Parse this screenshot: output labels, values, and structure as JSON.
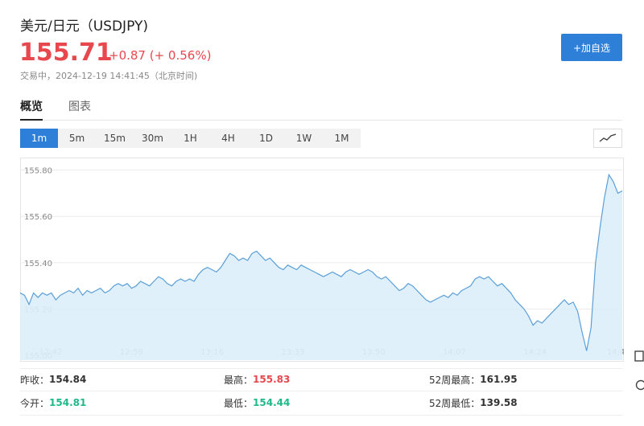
{
  "header": {
    "title": "美元/日元（USDJPY)",
    "price": "155.71",
    "change": "+0.87 (+ 0.56%)",
    "status": "交易中，2024-12-19 14:41:45（北京时间)",
    "watch_button": "+加自选"
  },
  "tabs": [
    {
      "label": "概览",
      "active": true
    },
    {
      "label": "图表",
      "active": false
    }
  ],
  "ranges": [
    {
      "label": "1m",
      "active": true
    },
    {
      "label": "5m",
      "active": false
    },
    {
      "label": "15m",
      "active": false
    },
    {
      "label": "30m",
      "active": false
    },
    {
      "label": "1H",
      "active": false
    },
    {
      "label": "4H",
      "active": false
    },
    {
      "label": "1D",
      "active": false
    },
    {
      "label": "1W",
      "active": false
    },
    {
      "label": "1M",
      "active": false
    }
  ],
  "chart_type_icon": "line-chart-icon",
  "colors": {
    "up": "#e8474d",
    "down": "#1eb88a",
    "accent": "#2e7fd8",
    "line": "#5a9fd8",
    "fill": "#ddeefb"
  },
  "chart_data": {
    "type": "area",
    "y_ticks": [
      "155.80",
      "155.60",
      "155.40",
      "155.20",
      "155.00"
    ],
    "x_ticks": [
      "12:42",
      "12:59",
      "13:16",
      "13:33",
      "13:50",
      "14:07",
      "14:24",
      "14:4"
    ],
    "ylim": [
      154.98,
      155.84
    ],
    "grid": true,
    "values": [
      155.27,
      155.26,
      155.22,
      155.27,
      155.25,
      155.27,
      155.26,
      155.27,
      155.24,
      155.26,
      155.27,
      155.28,
      155.27,
      155.29,
      155.26,
      155.28,
      155.27,
      155.28,
      155.29,
      155.27,
      155.28,
      155.3,
      155.31,
      155.3,
      155.31,
      155.29,
      155.3,
      155.32,
      155.31,
      155.3,
      155.32,
      155.34,
      155.33,
      155.31,
      155.3,
      155.32,
      155.33,
      155.32,
      155.33,
      155.32,
      155.35,
      155.37,
      155.38,
      155.37,
      155.36,
      155.38,
      155.41,
      155.44,
      155.43,
      155.41,
      155.42,
      155.41,
      155.44,
      155.45,
      155.43,
      155.41,
      155.42,
      155.4,
      155.38,
      155.37,
      155.39,
      155.38,
      155.37,
      155.39,
      155.38,
      155.37,
      155.36,
      155.35,
      155.34,
      155.35,
      155.36,
      155.35,
      155.34,
      155.36,
      155.37,
      155.36,
      155.35,
      155.36,
      155.37,
      155.36,
      155.34,
      155.33,
      155.34,
      155.32,
      155.3,
      155.28,
      155.29,
      155.31,
      155.3,
      155.28,
      155.26,
      155.24,
      155.23,
      155.24,
      155.25,
      155.26,
      155.25,
      155.27,
      155.26,
      155.28,
      155.29,
      155.3,
      155.33,
      155.34,
      155.33,
      155.34,
      155.32,
      155.3,
      155.31,
      155.29,
      155.27,
      155.24,
      155.22,
      155.2,
      155.17,
      155.13,
      155.15,
      155.14,
      155.16,
      155.18,
      155.2,
      155.22,
      155.24,
      155.22,
      155.23,
      155.19,
      155.1,
      155.02,
      155.12,
      155.4,
      155.55,
      155.68,
      155.78,
      155.75,
      155.7,
      155.71
    ]
  },
  "stats": {
    "prev_close": {
      "label": "昨收：",
      "value": "154.84"
    },
    "open": {
      "label": "今开：",
      "value": "154.81"
    },
    "high": {
      "label": "最高：",
      "value": "155.83"
    },
    "low": {
      "label": "最低：",
      "value": "154.44"
    },
    "high52": {
      "label": "52周最高：",
      "value": "161.95"
    },
    "low52": {
      "label": "52周最低：",
      "value": "139.58"
    }
  },
  "side_icons": [
    "copy-icon",
    "help-icon"
  ]
}
